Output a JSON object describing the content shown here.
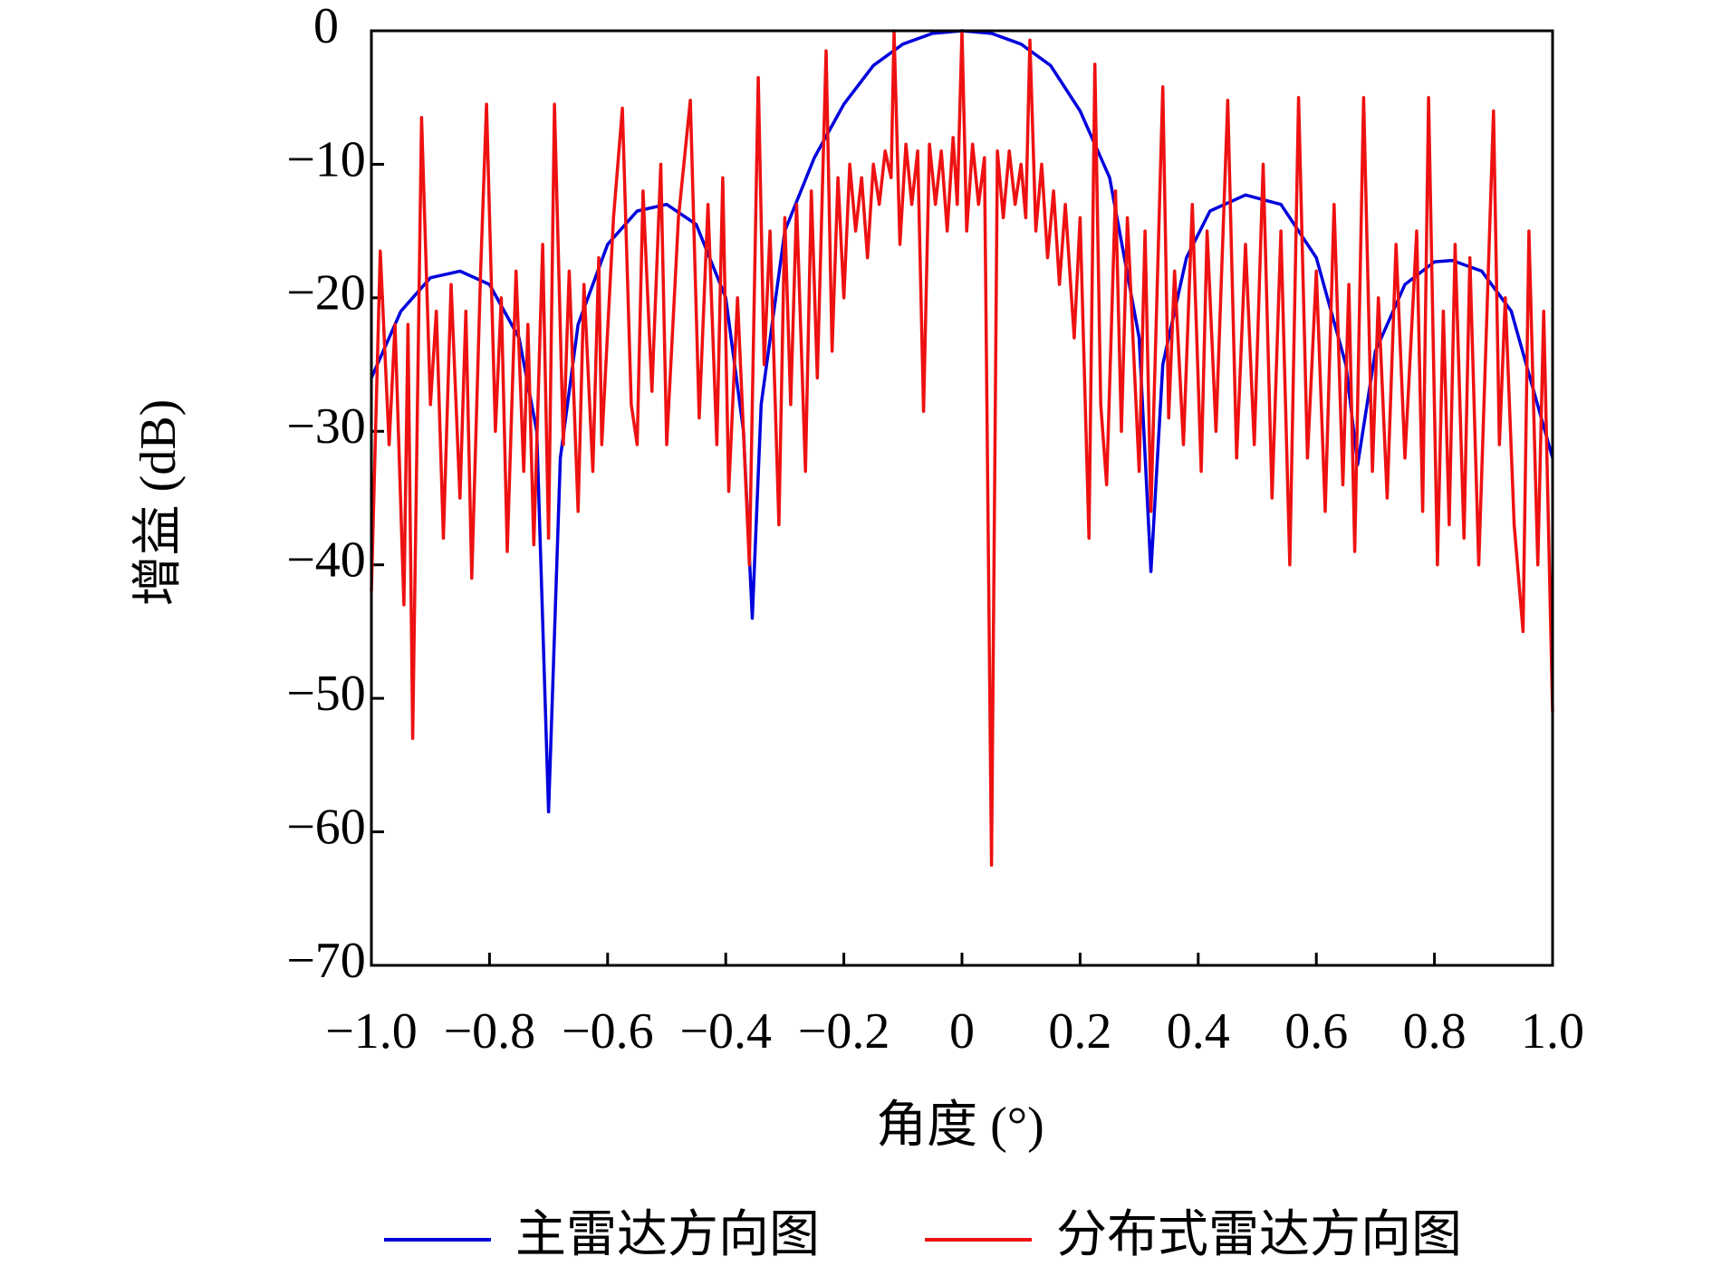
{
  "chart_data": {
    "type": "line",
    "xlabel": "角度 (°)",
    "ylabel": "增益 (dB)",
    "xlim": [
      -1.0,
      1.0
    ],
    "ylim": [
      -70,
      0
    ],
    "xticks": [
      {
        "value": -1.0,
        "label": "−1.0"
      },
      {
        "value": -0.8,
        "label": "−0.8"
      },
      {
        "value": -0.6,
        "label": "−0.6"
      },
      {
        "value": -0.4,
        "label": "−0.4"
      },
      {
        "value": -0.2,
        "label": "−0.2"
      },
      0,
      {
        "value": 0.2,
        "label": "0.2"
      },
      {
        "value": 0.4,
        "label": "0.4"
      },
      {
        "value": 0.6,
        "label": "0.6"
      },
      {
        "value": 0.8,
        "label": "0.8"
      },
      {
        "value": 1.0,
        "label": "1.0"
      }
    ],
    "yticks": [
      0,
      {
        "value": -10,
        "label": "−10"
      },
      {
        "value": -20,
        "label": "−20"
      },
      {
        "value": -30,
        "label": "−30"
      },
      {
        "value": -40,
        "label": "−40"
      },
      {
        "value": -50,
        "label": "−50"
      },
      {
        "value": -60,
        "label": "−60"
      },
      {
        "value": -70,
        "label": "−70"
      }
    ],
    "legend": "bottom",
    "series": [
      {
        "name": "主雷达方向图",
        "color": "#0000dd",
        "x": [
          -1.0,
          -0.95,
          -0.9,
          -0.85,
          -0.8,
          -0.75,
          -0.72,
          -0.7,
          -0.68,
          -0.65,
          -0.6,
          -0.55,
          -0.5,
          -0.45,
          -0.4,
          -0.37,
          -0.355,
          -0.34,
          -0.3,
          -0.25,
          -0.2,
          -0.15,
          -0.1,
          -0.05,
          0,
          0.05,
          0.1,
          0.15,
          0.2,
          0.25,
          0.3,
          0.32,
          0.34,
          0.38,
          0.42,
          0.48,
          0.54,
          0.6,
          0.65,
          0.67,
          0.7,
          0.75,
          0.8,
          0.83,
          0.88,
          0.93,
          1.0
        ],
        "values": [
          -26,
          -21,
          -18.5,
          -18,
          -19,
          -23,
          -30,
          -58.5,
          -32,
          -22,
          -16,
          -13.5,
          -13,
          -14.5,
          -20,
          -30,
          -44,
          -28,
          -15,
          -9.5,
          -5.5,
          -2.6,
          -1,
          -0.2,
          0,
          -0.2,
          -1,
          -2.6,
          -6,
          -11,
          -23,
          -40.5,
          -25,
          -17,
          -13.5,
          -12.3,
          -13,
          -17,
          -25,
          -32.5,
          -24,
          -19,
          -17.3,
          -17.2,
          -18,
          -21,
          -32
        ]
      },
      {
        "name": "分布式雷达方向图",
        "color": "#ee1111",
        "x": [
          -1.0,
          -0.985,
          -0.97,
          -0.96,
          -0.945,
          -0.938,
          -0.93,
          -0.915,
          -0.9,
          -0.89,
          -0.878,
          -0.865,
          -0.85,
          -0.84,
          -0.83,
          -0.815,
          -0.805,
          -0.79,
          -0.78,
          -0.77,
          -0.755,
          -0.742,
          -0.735,
          -0.725,
          -0.71,
          -0.7,
          -0.69,
          -0.675,
          -0.665,
          -0.65,
          -0.64,
          -0.625,
          -0.615,
          -0.61,
          -0.59,
          -0.575,
          -0.56,
          -0.55,
          -0.54,
          -0.525,
          -0.51,
          -0.5,
          -0.48,
          -0.46,
          -0.445,
          -0.43,
          -0.415,
          -0.405,
          -0.395,
          -0.38,
          -0.36,
          -0.345,
          -0.335,
          -0.325,
          -0.31,
          -0.3,
          -0.29,
          -0.28,
          -0.265,
          -0.255,
          -0.245,
          -0.23,
          -0.22,
          -0.21,
          -0.2,
          -0.19,
          -0.18,
          -0.17,
          -0.16,
          -0.15,
          -0.14,
          -0.13,
          -0.12,
          -0.115,
          -0.105,
          -0.095,
          -0.085,
          -0.075,
          -0.065,
          -0.055,
          -0.045,
          -0.035,
          -0.025,
          -0.015,
          -0.008,
          0,
          0.008,
          0.018,
          0.028,
          0.038,
          0.05,
          0.06,
          0.07,
          0.08,
          0.09,
          0.1,
          0.108,
          0.115,
          0.125,
          0.135,
          0.145,
          0.155,
          0.165,
          0.175,
          0.19,
          0.2,
          0.215,
          0.225,
          0.235,
          0.245,
          0.26,
          0.27,
          0.28,
          0.3,
          0.31,
          0.32,
          0.34,
          0.35,
          0.36,
          0.375,
          0.39,
          0.405,
          0.415,
          0.43,
          0.45,
          0.465,
          0.48,
          0.495,
          0.51,
          0.525,
          0.54,
          0.555,
          0.57,
          0.585,
          0.6,
          0.615,
          0.63,
          0.645,
          0.655,
          0.665,
          0.68,
          0.695,
          0.705,
          0.72,
          0.735,
          0.75,
          0.77,
          0.78,
          0.79,
          0.805,
          0.815,
          0.825,
          0.835,
          0.85,
          0.86,
          0.875,
          0.9,
          0.91,
          0.92,
          0.935,
          0.95,
          0.96,
          0.975,
          0.985,
          1.0
        ],
        "values": [
          -42,
          -16.5,
          -31,
          -22,
          -43,
          -22,
          -53,
          -6.5,
          -28,
          -21,
          -38,
          -19,
          -35,
          -21,
          -41,
          -18,
          -5.5,
          -30,
          -20,
          -39,
          -18,
          -33,
          -22,
          -38.5,
          -16,
          -38,
          -5.5,
          -31,
          -18,
          -36,
          -19,
          -33,
          -17,
          -31,
          -14,
          -5.8,
          -28,
          -31,
          -12,
          -27,
          -10,
          -31,
          -14,
          -5.2,
          -29,
          -13,
          -31,
          -11,
          -34.5,
          -20,
          -40,
          -3.5,
          -25,
          -15,
          -37,
          -14,
          -28,
          -13,
          -33,
          -12,
          -26,
          -1.5,
          -24,
          -11,
          -20,
          -10,
          -15,
          -11,
          -17,
          -10,
          -13,
          -9,
          -11,
          0,
          -16,
          -8.5,
          -13,
          -9,
          -28.5,
          -8.5,
          -13,
          -9,
          -15,
          -8,
          -13,
          0,
          -15,
          -8.5,
          -13,
          -9.5,
          -62.5,
          -9,
          -14,
          -9,
          -13,
          -10,
          -14,
          -0.7,
          -15,
          -10,
          -17,
          -12,
          -19,
          -13,
          -23,
          -14,
          -38,
          -2.5,
          -28,
          -34,
          -12,
          -30,
          -14,
          -33,
          -15,
          -36,
          -4.2,
          -29,
          -18,
          -31,
          -13,
          -33,
          -15,
          -30,
          -5.2,
          -32,
          -16,
          -31,
          -10,
          -35,
          -15,
          -40,
          -5,
          -32,
          -18,
          -36,
          -13,
          -34,
          -19,
          -39,
          -5,
          -33,
          -20,
          -35,
          -16,
          -32,
          -15,
          -36,
          -5,
          -40,
          -21,
          -37,
          -16,
          -38,
          -17,
          -40,
          -6,
          -31,
          -20,
          -37,
          -45,
          -15,
          -40,
          -21,
          -51
        ]
      }
    ]
  }
}
